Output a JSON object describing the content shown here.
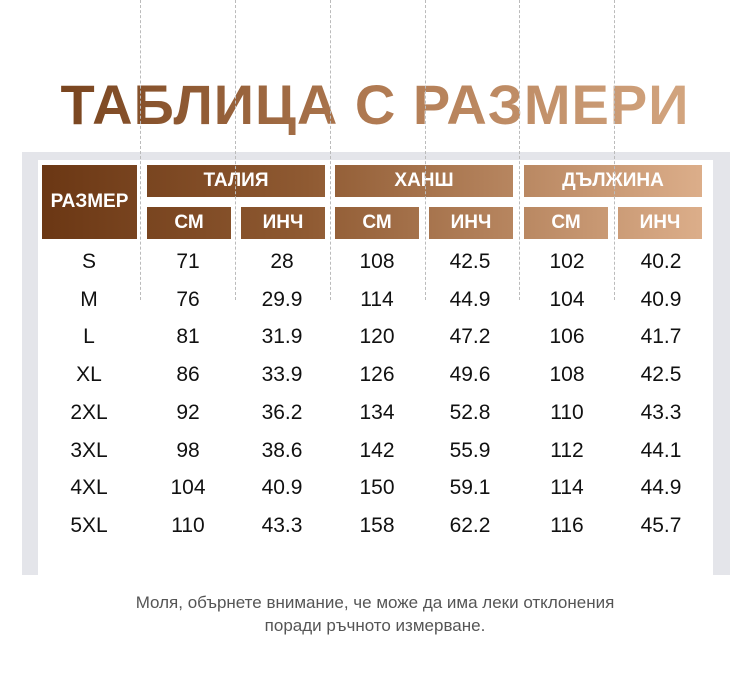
{
  "title": "ТАБЛИЦА С РАЗМЕРИ",
  "header": {
    "size": "РАЗМЕР",
    "groups": [
      {
        "label": "ТАЛИЯ",
        "cm": "СМ",
        "inch": "ИНЧ"
      },
      {
        "label": "ХАНШ",
        "cm": "СМ",
        "inch": "ИНЧ"
      },
      {
        "label": "ДЪЛЖИНА",
        "cm": "СМ",
        "inch": "ИНЧ"
      }
    ]
  },
  "rows": [
    [
      "S",
      "71",
      "28",
      "108",
      "42.5",
      "102",
      "40.2"
    ],
    [
      "M",
      "76",
      "29.9",
      "114",
      "44.9",
      "104",
      "40.9"
    ],
    [
      "L",
      "81",
      "31.9",
      "120",
      "47.2",
      "106",
      "41.7"
    ],
    [
      "XL",
      "86",
      "33.9",
      "126",
      "49.6",
      "108",
      "42.5"
    ],
    [
      "2XL",
      "92",
      "36.2",
      "134",
      "52.8",
      "110",
      "43.3"
    ],
    [
      "3XL",
      "98",
      "38.6",
      "142",
      "55.9",
      "112",
      "44.1"
    ],
    [
      "4XL",
      "104",
      "40.9",
      "150",
      "59.1",
      "114",
      "44.9"
    ],
    [
      "5XL",
      "110",
      "43.3",
      "158",
      "62.2",
      "116",
      "45.7"
    ]
  ],
  "note": [
    "Моля, обърнете внимание, че може да има леки отклонения",
    "поради ръчното измерване."
  ],
  "colors": {
    "header_dark": "#6b3714",
    "header_light": "#dcae8a",
    "panel": "#e4e5ea"
  }
}
